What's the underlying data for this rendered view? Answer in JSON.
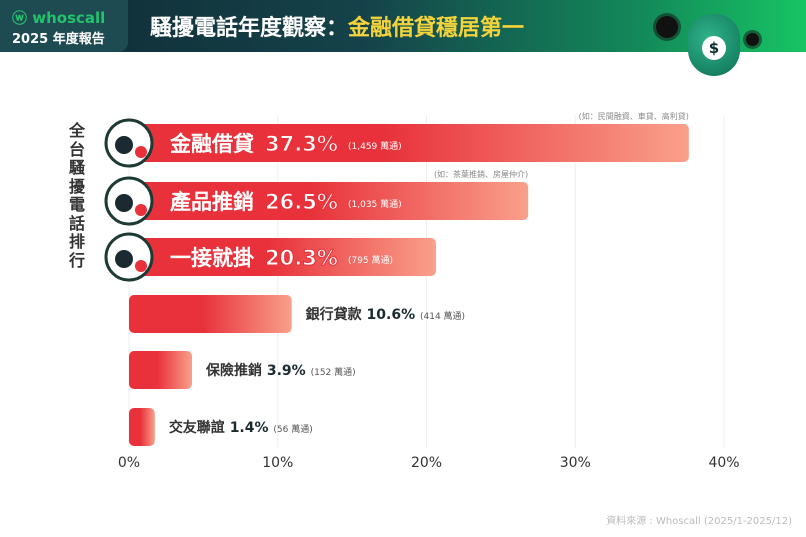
{
  "header": {
    "brand": "whoscall",
    "report": "2025 年度報告",
    "title_main": "騷擾電話年度觀察：",
    "title_highlight": "金融借貸穩居第一"
  },
  "side_label": "全台騷擾電話排行",
  "source": "資料來源 : Whoscall (2025/1-2025/12)",
  "colors": {
    "bar": "#e8313a",
    "bar_end": "#f9a08a",
    "header_dark": "#0f2a33",
    "header_green": "#17c463",
    "highlight": "#f5d43b"
  },
  "chart_data": {
    "type": "bar",
    "orientation": "horizontal",
    "categories": [
      "金融借貸",
      "產品推銷",
      "一接就掛",
      "銀行貸款",
      "保險推銷",
      "交友聯誼"
    ],
    "values": [
      37.3,
      26.5,
      20.3,
      10.6,
      3.9,
      1.4
    ],
    "value_labels": [
      "37.3%",
      "26.5%",
      "20.3%",
      "10.6%",
      "3.9%",
      "1.4%"
    ],
    "counts": [
      "(1,459 萬通)",
      "(1,035 萬通)",
      "(795 萬通)",
      "(414 萬通)",
      "(152 萬通)",
      "(56 萬通)"
    ],
    "notes": [
      "(如：民間融資、車貸、高利貸)",
      "(如：茶葉推銷、房屋仲介)",
      "",
      "",
      "",
      ""
    ],
    "icons": [
      "scammer-icon",
      "briefcase-icon",
      "phone-alert-icon",
      "",
      "",
      ""
    ],
    "xlim": [
      0,
      40
    ],
    "xticks": [
      "0%",
      "10%",
      "20%",
      "30%",
      "40%"
    ],
    "grid": true
  }
}
